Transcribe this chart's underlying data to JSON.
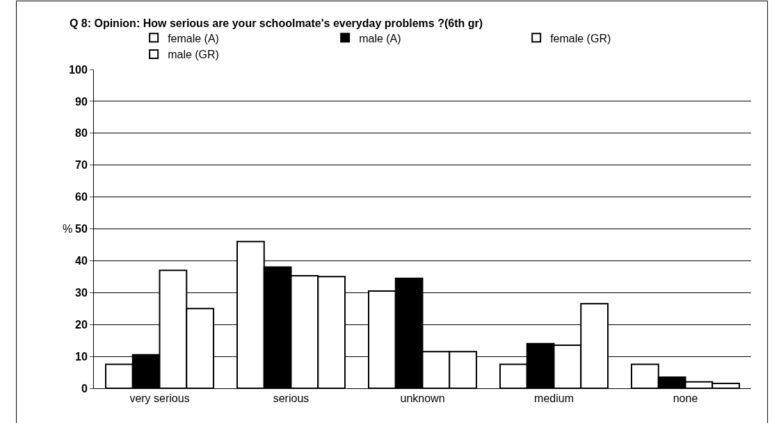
{
  "chart_data": {
    "type": "bar",
    "title": "Q 8: Opinion: How serious are your schoolmate's everyday problems ?(6th gr)",
    "ylabel": "%",
    "categories": [
      "very serious",
      "serious",
      "unknown",
      "medium",
      "none"
    ],
    "series": [
      {
        "name": "female (A)",
        "color": "#ffffff",
        "values": [
          7.5,
          46,
          30.5,
          7.5,
          7.5
        ]
      },
      {
        "name": "male (A)",
        "color": "#000000",
        "values": [
          10.5,
          38,
          34.5,
          14,
          3.5
        ]
      },
      {
        "name": "female (GR)",
        "color": "#ffffff",
        "values": [
          37,
          35.3,
          11.5,
          13.5,
          2
        ]
      },
      {
        "name": "male (GR)",
        "color": "#ffffff",
        "values": [
          25,
          35,
          11.5,
          26.5,
          1.5
        ]
      }
    ],
    "ylim": [
      0,
      100
    ],
    "yticks": [
      0,
      10,
      20,
      30,
      40,
      50,
      60,
      70,
      80,
      90,
      100
    ],
    "grid": "y",
    "legend": "top"
  }
}
